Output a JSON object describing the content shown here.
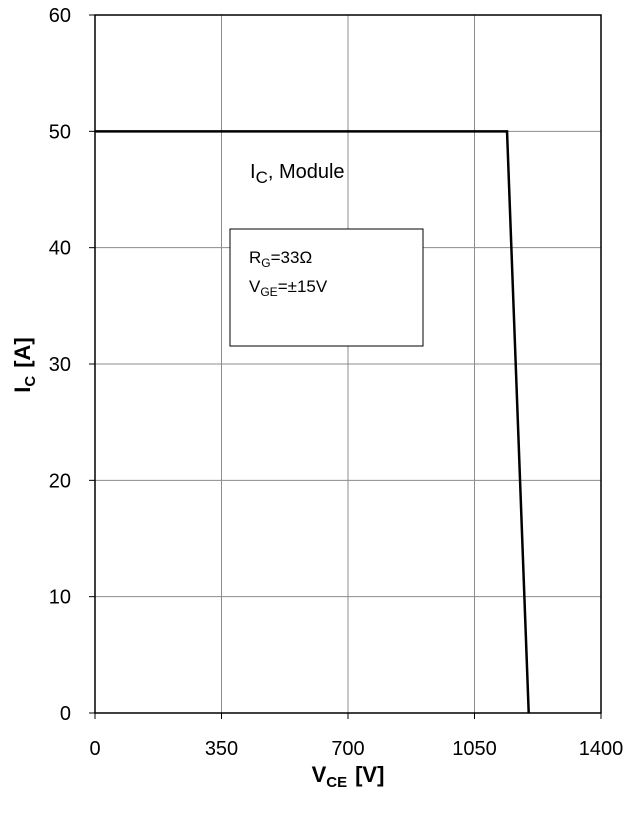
{
  "chart_data": {
    "type": "line",
    "xlabel": {
      "main": "V",
      "sub": "CE",
      "unit": "[V]"
    },
    "ylabel": {
      "main": "I",
      "sub": "C",
      "unit": "[A]"
    },
    "xlim": [
      0,
      1400
    ],
    "ylim": [
      0,
      60
    ],
    "xticks": [
      0,
      350,
      700,
      1050,
      1400
    ],
    "yticks": [
      0,
      10,
      20,
      30,
      40,
      50,
      60
    ],
    "grid": true,
    "series": [
      {
        "name": "",
        "x": [
          0,
          1140,
          1200
        ],
        "y": [
          50,
          50,
          0
        ]
      }
    ],
    "annotations": {
      "curve_label": {
        "main": "I",
        "sub": "C",
        "rest": ", Module"
      },
      "conditions": [
        {
          "main": "R",
          "sub": "G",
          "rest": "=33Ω"
        },
        {
          "main": "V",
          "sub": "GE",
          "rest": "=±15V"
        }
      ]
    }
  }
}
